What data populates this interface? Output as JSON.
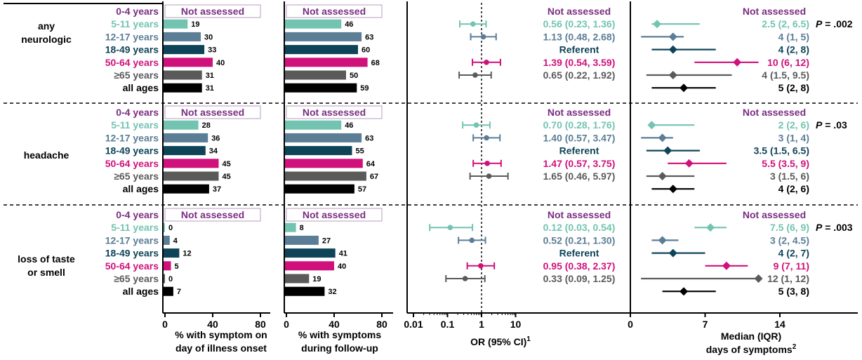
{
  "colors": {
    "0-4 years": "#7b2d82",
    "5-11 years": "#72c4b1",
    "12-17 years": "#5b7e96",
    "18-49 years": "#0f4458",
    "50-64 years": "#d0117c",
    "≥65 years": "#5a5a5a",
    "all ages": "#000000",
    "na_box_border": "#b99bc0",
    "na_text": "#7b2d82"
  },
  "labels": {
    "not_assessed": "Not assessed",
    "referent": "Referent"
  },
  "chart_data": {
    "type": "forest",
    "age_groups": [
      "0-4 years",
      "5-11 years",
      "12-17 years",
      "18-49 years",
      "50-64 years",
      "≥65 years",
      "all ages"
    ],
    "panels": {
      "onset": {
        "xlabel_line1": "% with symptom on",
        "xlabel_line2": "day of illness onset",
        "ticks": [
          "0",
          "40",
          "80"
        ],
        "xlim": [
          0,
          80
        ]
      },
      "followup": {
        "xlabel_line1": "% with symptoms",
        "xlabel_line2": "during follow-up",
        "ticks": [
          "0",
          "40",
          "80"
        ],
        "xlim": [
          0,
          80
        ]
      },
      "or": {
        "xlabel": "OR (95%  CI)",
        "xlabel_sup": "1",
        "scale": "log",
        "ticks": [
          "0.01",
          "0.1",
          "1",
          "10"
        ],
        "reference_line": 1
      },
      "duration": {
        "xlabel_line1": "Median (IQR)",
        "xlabel_line2": "days of symptoms",
        "xlabel_sup": "2",
        "ticks": [
          "0",
          "7",
          "14"
        ],
        "xlim": [
          0,
          14
        ]
      }
    },
    "symptoms": [
      {
        "name_lines": [
          "any",
          "neurologic"
        ],
        "p_label": "P",
        "p_value": " = .002",
        "onset": [
          null,
          19,
          30,
          33,
          40,
          31,
          31
        ],
        "followup": [
          null,
          46,
          63,
          60,
          68,
          50,
          59
        ],
        "or": [
          null,
          {
            "text": "0.56 (0.23, 1.36)",
            "est": 0.56,
            "lo": 0.23,
            "hi": 1.36
          },
          {
            "text": "1.13 (0.48, 2.68)",
            "est": 1.13,
            "lo": 0.48,
            "hi": 2.68
          },
          "referent",
          {
            "text": "1.39 (0.54, 3.59)",
            "est": 1.39,
            "lo": 0.54,
            "hi": 3.59
          },
          {
            "text": "0.65 (0.22, 1.92)",
            "est": 0.65,
            "lo": 0.22,
            "hi": 1.92
          },
          null
        ],
        "duration": [
          null,
          {
            "text": "2.5 (2, 6.5)",
            "med": 2.5,
            "lo": 2,
            "hi": 6.5
          },
          {
            "text": "4 (1, 5)",
            "med": 4,
            "lo": 1,
            "hi": 5
          },
          {
            "text": "4 (2, 8)",
            "med": 4,
            "lo": 2,
            "hi": 8
          },
          {
            "text": "10 (6, 12)",
            "med": 10,
            "lo": 6,
            "hi": 12
          },
          {
            "text": "4 (1.5, 9.5)",
            "med": 4,
            "lo": 1.5,
            "hi": 9.5
          },
          {
            "text": "5 (2, 8)",
            "med": 5,
            "lo": 2,
            "hi": 8
          }
        ]
      },
      {
        "name_lines": [
          "headache"
        ],
        "p_label": "P",
        "p_value": " = .03",
        "onset": [
          null,
          28,
          36,
          34,
          45,
          45,
          37
        ],
        "followup": [
          null,
          46,
          63,
          55,
          64,
          67,
          57
        ],
        "or": [
          null,
          {
            "text": "0.70 (0.28, 1.76)",
            "est": 0.7,
            "lo": 0.28,
            "hi": 1.76
          },
          {
            "text": "1.40 (0.57, 3.47)",
            "est": 1.4,
            "lo": 0.57,
            "hi": 3.47
          },
          "referent",
          {
            "text": "1.47 (0.57, 3.75)",
            "est": 1.47,
            "lo": 0.57,
            "hi": 3.75
          },
          {
            "text": "1.65 (0.46, 5.97)",
            "est": 1.65,
            "lo": 0.46,
            "hi": 5.97
          },
          null
        ],
        "duration": [
          null,
          {
            "text": "2 (2, 6)",
            "med": 2,
            "lo": 2,
            "hi": 6
          },
          {
            "text": "3 (1, 4)",
            "med": 3,
            "lo": 1,
            "hi": 4
          },
          {
            "text": "3.5 (1.5, 6.5)",
            "med": 3.5,
            "lo": 1.5,
            "hi": 6.5
          },
          {
            "text": "5.5 (3.5, 9)",
            "med": 5.5,
            "lo": 3.5,
            "hi": 9
          },
          {
            "text": "3 (1.5, 6)",
            "med": 3,
            "lo": 1.5,
            "hi": 6
          },
          {
            "text": "4 (2, 6)",
            "med": 4,
            "lo": 2,
            "hi": 6
          }
        ]
      },
      {
        "name_lines": [
          "loss of taste",
          "or smell"
        ],
        "p_label": "P",
        "p_value": " = .003",
        "onset": [
          null,
          0,
          4,
          12,
          5,
          0,
          7
        ],
        "followup": [
          null,
          8,
          27,
          41,
          40,
          19,
          32
        ],
        "or": [
          null,
          {
            "text": "0.12 (0.03, 0.54)",
            "est": 0.12,
            "lo": 0.03,
            "hi": 0.54
          },
          {
            "text": "0.52 (0.21, 1.30)",
            "est": 0.52,
            "lo": 0.21,
            "hi": 1.3
          },
          "referent",
          {
            "text": "0.95 (0.38, 2.37)",
            "est": 0.95,
            "lo": 0.38,
            "hi": 2.37
          },
          {
            "text": "0.33 (0.09, 1.25)",
            "est": 0.33,
            "lo": 0.09,
            "hi": 1.25
          },
          null
        ],
        "duration": [
          null,
          {
            "text": "7.5 (6, 9)",
            "med": 7.5,
            "lo": 6,
            "hi": 9
          },
          {
            "text": "3 (2, 4.5)",
            "med": 3,
            "lo": 2,
            "hi": 4.5
          },
          {
            "text": "4 (2, 7)",
            "med": 4,
            "lo": 2,
            "hi": 7
          },
          {
            "text": "9 (7, 11)",
            "med": 9,
            "lo": 7,
            "hi": 11
          },
          {
            "text": "12 (1, 12)",
            "med": 12,
            "lo": 1,
            "hi": 12
          },
          {
            "text": "5 (3, 8)",
            "med": 5,
            "lo": 3,
            "hi": 8
          }
        ]
      }
    ]
  }
}
